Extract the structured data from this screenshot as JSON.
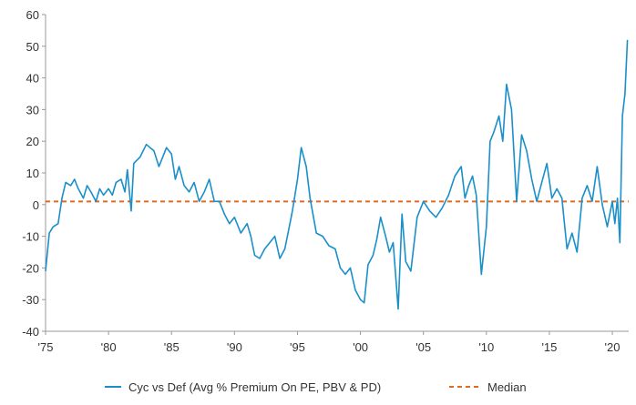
{
  "chart_data": {
    "type": "line",
    "title": "",
    "xlabel": "",
    "ylabel": "",
    "xlim": [
      1975,
      2021.3
    ],
    "ylim": [
      -40,
      60
    ],
    "yticks": [
      -40,
      -30,
      -20,
      -10,
      0,
      10,
      20,
      30,
      40,
      50,
      60
    ],
    "ytick_labels": [
      "-40",
      "-30",
      "-20",
      "-10",
      "0",
      "10",
      "20",
      "30",
      "40",
      "50",
      "60"
    ],
    "xticks": [
      1975,
      1980,
      1985,
      1990,
      1995,
      2000,
      2005,
      2010,
      2015,
      2020
    ],
    "xtick_labels": [
      "'75",
      "'80",
      "'85",
      "'90",
      "'95",
      "'00",
      "'05",
      "'10",
      "'15",
      "'20"
    ],
    "grid": false,
    "legend_position": "bottom",
    "colors": {
      "series": "#1a8fc9",
      "median": "#e06b1f",
      "axis": "#999999"
    },
    "series": [
      {
        "name": "Cyc vs Def (Avg % Premium On PE, PBV & PD)",
        "x": [
          1975.0,
          1975.3,
          1975.6,
          1976.0,
          1976.3,
          1976.6,
          1977.0,
          1977.3,
          1977.6,
          1978.0,
          1978.3,
          1978.6,
          1979.0,
          1979.3,
          1979.6,
          1980.0,
          1980.3,
          1980.6,
          1981.0,
          1981.3,
          1981.5,
          1981.8,
          1982.0,
          1982.5,
          1983.0,
          1983.3,
          1983.6,
          1984.0,
          1984.3,
          1984.6,
          1985.0,
          1985.3,
          1985.6,
          1986.0,
          1986.4,
          1986.8,
          1987.2,
          1987.6,
          1988.0,
          1988.4,
          1988.8,
          1989.2,
          1989.6,
          1990.0,
          1990.5,
          1991.0,
          1991.3,
          1991.6,
          1992.0,
          1992.4,
          1992.8,
          1993.2,
          1993.6,
          1994.0,
          1994.3,
          1994.6,
          1995.0,
          1995.3,
          1995.7,
          1996.0,
          1996.5,
          1997.0,
          1997.5,
          1998.0,
          1998.4,
          1998.8,
          1999.2,
          1999.6,
          2000.0,
          2000.3,
          2000.6,
          2001.0,
          2001.3,
          2001.6,
          2002.0,
          2002.3,
          2002.6,
          2003.0,
          2003.3,
          2003.6,
          2004.0,
          2004.5,
          2005.0,
          2005.5,
          2006.0,
          2006.5,
          2007.0,
          2007.5,
          2008.0,
          2008.3,
          2008.6,
          2008.9,
          2009.2,
          2009.6,
          2010.0,
          2010.3,
          2010.6,
          2011.0,
          2011.3,
          2011.6,
          2012.0,
          2012.4,
          2012.8,
          2013.2,
          2013.6,
          2014.0,
          2014.4,
          2014.8,
          2015.2,
          2015.6,
          2016.0,
          2016.4,
          2016.8,
          2017.2,
          2017.6,
          2018.0,
          2018.4,
          2018.8,
          2019.2,
          2019.6,
          2020.0,
          2020.2,
          2020.4,
          2020.6,
          2020.8,
          2021.0,
          2021.2
        ],
        "values": [
          -21,
          -9,
          -7,
          -6,
          2,
          7,
          6,
          8,
          5,
          2,
          6,
          4,
          1,
          5,
          3,
          5,
          3,
          7,
          8,
          4,
          11,
          -2,
          13,
          15,
          19,
          18,
          17,
          12,
          15,
          18,
          16,
          8,
          12,
          6,
          4,
          7,
          1,
          4,
          8,
          1,
          1,
          -3,
          -6,
          -4,
          -9,
          -6,
          -10,
          -16,
          -17,
          -14,
          -12,
          -10,
          -17,
          -14,
          -8,
          -2,
          8,
          18,
          12,
          2,
          -9,
          -10,
          -13,
          -14,
          -20,
          -22,
          -20,
          -27,
          -30,
          -31,
          -19,
          -16,
          -11,
          -4,
          -10,
          -15,
          -12,
          -33,
          -3,
          -18,
          -21,
          -4,
          1,
          -2,
          -4,
          -1,
          3,
          9,
          12,
          2,
          6,
          9,
          3,
          -22,
          -7,
          20,
          23,
          28,
          20,
          38,
          30,
          1,
          22,
          17,
          8,
          1,
          7,
          13,
          2,
          5,
          2,
          -14,
          -9,
          -15,
          2,
          6,
          1,
          12,
          0,
          -7,
          1,
          -6,
          2,
          -12,
          28,
          35,
          52
        ]
      },
      {
        "name": "Median",
        "values": [
          1
        ]
      }
    ]
  }
}
